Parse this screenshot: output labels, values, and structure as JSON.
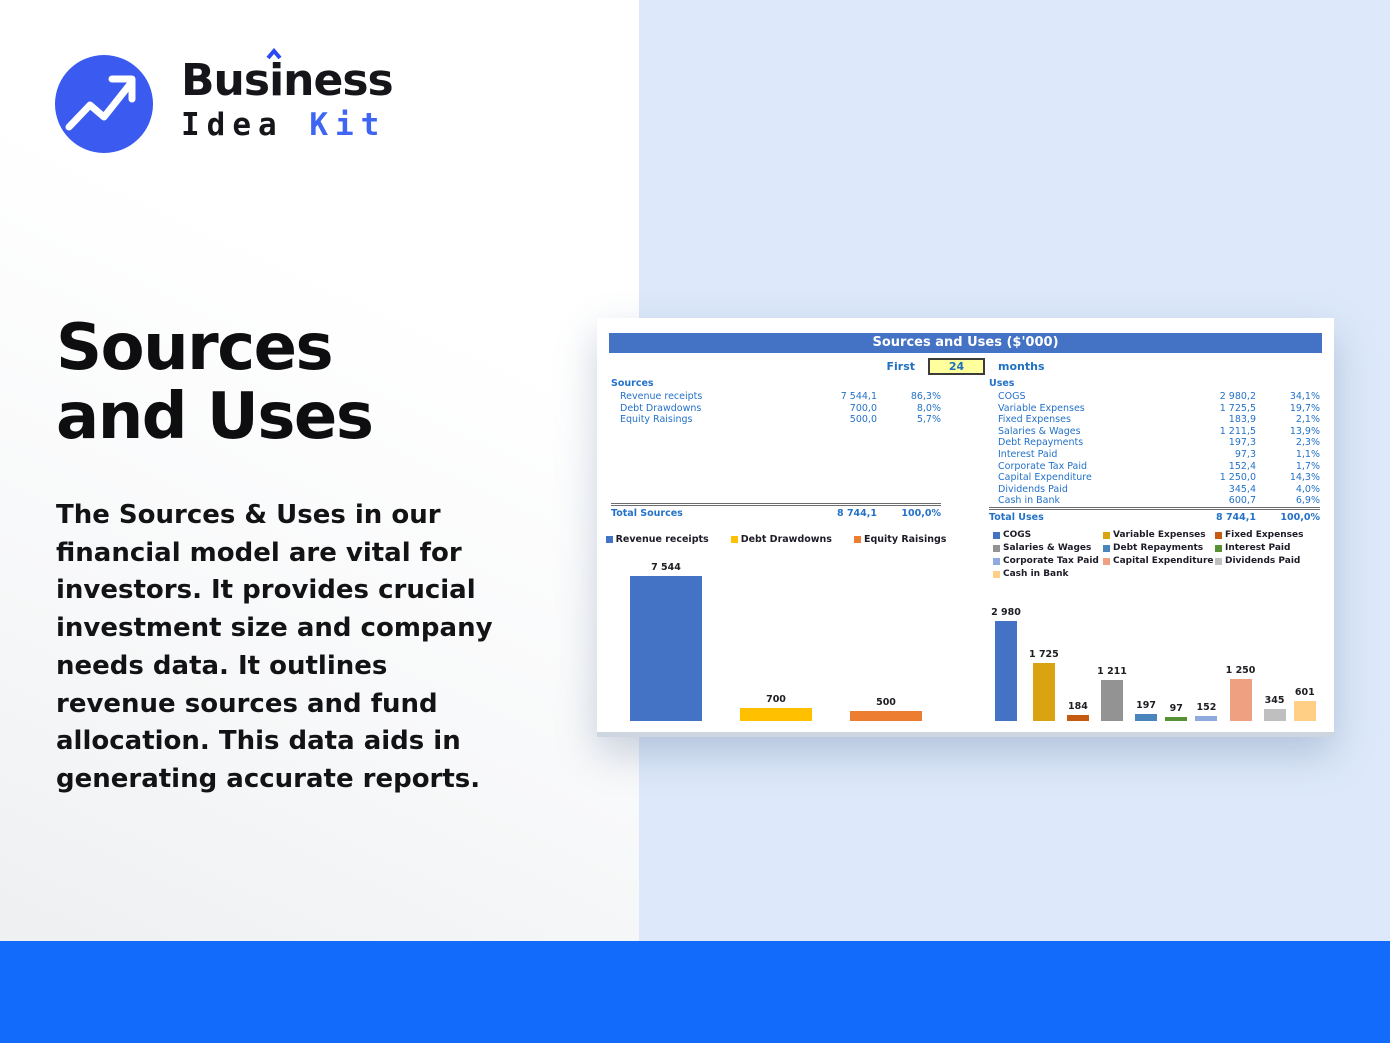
{
  "logo": {
    "word_pre": "Bus",
    "word_i": "i",
    "word_post": "ness",
    "line2_dark": "Idea",
    "line2_accent": "Kit"
  },
  "hero": {
    "title_line1": "Sources",
    "title_line2": "and Uses",
    "description": "The Sources & Uses in our financial model are vital for investors. It provides crucial investment size and company needs data. It outlines revenue sources and fund allocation. This data aids in generating accurate reports."
  },
  "workbook": {
    "title": "Sources and Uses ($'000)",
    "period_prefix": "First",
    "period_value": "24",
    "period_suffix": "months",
    "sources": {
      "header": "Sources",
      "rows": [
        {
          "label": "Revenue receipts",
          "value": "7 544,1",
          "pct": "86,3%"
        },
        {
          "label": "Debt Drawdowns",
          "value": "700,0",
          "pct": "8,0%"
        },
        {
          "label": "Equity Raisings",
          "value": "500,0",
          "pct": "5,7%"
        }
      ],
      "total": {
        "label": "Total Sources",
        "value": "8 744,1",
        "pct": "100,0%"
      }
    },
    "uses": {
      "header": "Uses",
      "rows": [
        {
          "label": "COGS",
          "value": "2 980,2",
          "pct": "34,1%"
        },
        {
          "label": "Variable Expenses",
          "value": "1 725,5",
          "pct": "19,7%"
        },
        {
          "label": "Fixed Expenses",
          "value": "183,9",
          "pct": "2,1%"
        },
        {
          "label": "Salaries & Wages",
          "value": "1 211,5",
          "pct": "13,9%"
        },
        {
          "label": "Debt Repayments",
          "value": "197,3",
          "pct": "2,3%"
        },
        {
          "label": "Interest Paid",
          "value": "97,3",
          "pct": "1,1%"
        },
        {
          "label": "Corporate Tax Paid",
          "value": "152,4",
          "pct": "1,7%"
        },
        {
          "label": "Capital Expenditure",
          "value": "1 250,0",
          "pct": "14,3%"
        },
        {
          "label": "Dividends Paid",
          "value": "345,4",
          "pct": "4,0%"
        },
        {
          "label": "Cash in Bank",
          "value": "600,7",
          "pct": "6,9%"
        }
      ],
      "total": {
        "label": "Total Uses",
        "value": "8 744,1",
        "pct": "100,0%"
      }
    }
  },
  "chart_data": [
    {
      "type": "bar",
      "title": "Sources chart",
      "categories": [
        "Revenue receipts",
        "Debt Drawdowns",
        "Equity Raisings"
      ],
      "values": [
        7544,
        700,
        500
      ],
      "labels": [
        "7 544",
        "700",
        "500"
      ],
      "colors": [
        "#4472C4",
        "#FFC000",
        "#ED7D31"
      ],
      "xlabel": "",
      "ylabel": "",
      "ylim": [
        0,
        7544
      ],
      "legend_position": "top",
      "grid": false,
      "axes_hidden": true
    },
    {
      "type": "bar",
      "title": "Uses chart",
      "categories": [
        "COGS",
        "Variable Expenses",
        "Fixed Expenses",
        "Salaries & Wages",
        "Debt Repayments",
        "Interest Paid",
        "Corporate Tax Paid",
        "Capital Expenditure",
        "Dividends Paid",
        "Cash in Bank"
      ],
      "values": [
        2980,
        1725,
        184,
        1211,
        197,
        97,
        152,
        1250,
        345,
        601
      ],
      "labels": [
        "2 980",
        "1 725",
        "184",
        "1 211",
        "197",
        "97",
        "152",
        "1 250",
        "345",
        "601"
      ],
      "colors": [
        "#4472C4",
        "#D9A311",
        "#C55A11",
        "#939393",
        "#4A86BC",
        "#569133",
        "#8FAADC",
        "#EFA081",
        "#BFBFBF",
        "#FFCF86"
      ],
      "xlabel": "",
      "ylabel": "",
      "ylim": [
        0,
        2980
      ],
      "legend_position": "top",
      "grid": false,
      "axes_hidden": true
    }
  ],
  "colors": {
    "brand_blue": "#3a5af0",
    "accent_blue": "#3e66f3",
    "panel_light_blue": "#dde9fa",
    "bottom_bar_blue": "#126bfb",
    "workbook_header_blue": "#4472c4",
    "workbook_text_blue": "#2472c8",
    "period_box_yellow": "#ffff9e"
  }
}
